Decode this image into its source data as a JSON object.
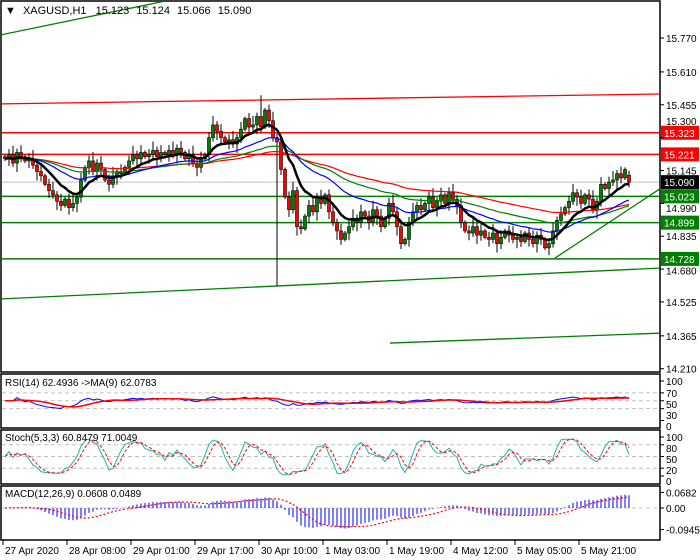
{
  "header": {
    "arrow": "▼",
    "symbol": "XAGUSD,H1",
    "open": "15.123",
    "high": "15.124",
    "low": "15.066",
    "close": "15.090"
  },
  "colors": {
    "bull": "#008000",
    "bear": "#ff0000",
    "ma_fast": "#000000",
    "ma_blue": "#0000ff",
    "ma_green": "#008000",
    "ma_red": "#ff0000",
    "rsi": "#0000ff",
    "rsi_ma": "#ff0000",
    "stoch_k": "#20b2aa",
    "stoch_d": "#ff0000",
    "macd_hist": "#0000ff",
    "macd_signal": "#ff0000",
    "support": "#008000",
    "resistance": "#ff0000"
  },
  "chart_data": [
    {
      "type": "candlestick",
      "title": "XAGUSD,H1",
      "ylim": [
        14.21,
        15.77
      ],
      "y_ticks": [
        "15.770",
        "15.610",
        "15.455",
        "15.300",
        "15.145",
        "14.990",
        "14.835",
        "14.680",
        "14.525",
        "14.365",
        "14.210"
      ],
      "x_ticks": [
        {
          "bar": 0,
          "label": "27 Apr 2020"
        },
        {
          "bar": 16,
          "label": "28 Apr 08:00"
        },
        {
          "bar": 32,
          "label": "29 Apr 01:00"
        },
        {
          "bar": 48,
          "label": "29 Apr 17:00"
        },
        {
          "bar": 64,
          "label": "30 Apr 10:00"
        },
        {
          "bar": 80,
          "label": "1 May 03:00"
        },
        {
          "bar": 96,
          "label": "1 May 19:00"
        },
        {
          "bar": 112,
          "label": "4 May 12:00"
        },
        {
          "bar": 128,
          "label": "5 May 05:00"
        },
        {
          "bar": 144,
          "label": "5 May 21:00"
        }
      ],
      "closes": [
        15.2,
        15.22,
        15.18,
        15.23,
        15.21,
        15.19,
        15.2,
        15.17,
        15.14,
        15.12,
        15.08,
        15.05,
        15.03,
        15.0,
        14.98,
        15.01,
        14.97,
        14.99,
        15.02,
        15.1,
        15.16,
        15.19,
        15.14,
        15.18,
        15.15,
        15.1,
        15.08,
        15.12,
        15.14,
        15.13,
        15.16,
        15.19,
        15.22,
        15.2,
        15.23,
        15.21,
        15.22,
        15.24,
        15.21,
        15.23,
        15.22,
        15.24,
        15.22,
        15.25,
        15.23,
        15.2,
        15.22,
        15.18,
        15.16,
        15.2,
        15.22,
        15.3,
        15.36,
        15.33,
        15.3,
        15.28,
        15.29,
        15.27,
        15.3,
        15.34,
        15.39,
        15.35,
        15.36,
        15.4,
        15.35,
        15.43,
        15.38,
        15.3,
        15.28,
        15.15,
        15.02,
        14.96,
        15.05,
        14.88,
        14.87,
        14.93,
        14.98,
        14.95,
        15.02,
        14.99,
        15.03,
        14.95,
        14.9,
        14.86,
        14.82,
        14.85,
        14.88,
        14.92,
        14.9,
        14.95,
        14.93,
        14.9,
        14.96,
        14.93,
        14.88,
        14.92,
        14.99,
        14.95,
        14.88,
        14.8,
        14.82,
        14.9,
        14.95,
        14.98,
        14.96,
        14.99,
        15.02,
        14.97,
        15.0,
        15.03,
        14.99,
        15.04,
        15.01,
        14.98,
        14.9,
        14.86,
        14.85,
        14.88,
        14.84,
        14.86,
        14.83,
        14.82,
        14.85,
        14.8,
        14.83,
        14.86,
        14.84,
        14.82,
        14.83,
        14.81,
        14.85,
        14.82,
        14.8,
        14.84,
        14.82,
        14.78,
        14.8,
        14.86,
        14.91,
        14.94,
        14.97,
        15.0,
        15.04,
        15.02,
        14.99,
        15.03,
        15.01,
        14.96,
        15.0,
        15.08,
        15.06,
        15.09,
        15.1,
        15.13,
        15.11,
        15.15,
        15.09
      ],
      "last_candle": {
        "open": 15.123,
        "high": 15.124,
        "low": 15.066,
        "close": 15.09
      },
      "wick_extremes": [
        {
          "bar": 64,
          "high": 15.5
        },
        {
          "bar": 68,
          "low": 14.6
        }
      ],
      "moving_averages": [
        {
          "color": "black"
        },
        {
          "color": "blue"
        },
        {
          "color": "green"
        },
        {
          "color": "red"
        }
      ],
      "levels": [
        {
          "price": 15.323,
          "label": "15.323",
          "kind": "resistance"
        },
        {
          "price": 15.221,
          "label": "15.221",
          "kind": "resistance"
        },
        {
          "price": 15.023,
          "label": "15.023",
          "kind": "support"
        },
        {
          "price": 14.899,
          "label": "14.899",
          "kind": "support"
        },
        {
          "price": 14.728,
          "label": "14.728",
          "kind": "support"
        }
      ],
      "current_price": {
        "price": 15.09,
        "label": "15.090"
      },
      "trendlines": [
        {
          "kind": "resistance",
          "from": {
            "bar": -1.25,
            "price": 15.459
          },
          "to": {
            "bar": 164,
            "price": 15.506
          }
        },
        {
          "kind": "support",
          "from": {
            "bar": -1.25,
            "price": 15.784
          },
          "to": {
            "bar": 41.25,
            "price": 15.949
          }
        },
        {
          "kind": "support",
          "from": {
            "bar": -1.25,
            "price": 14.539
          },
          "to": {
            "bar": 164,
            "price": 14.685
          }
        },
        {
          "kind": "support",
          "from": {
            "bar": 96.25,
            "price": 14.331
          },
          "to": {
            "bar": 164,
            "price": 14.378
          }
        },
        {
          "kind": "support",
          "from": {
            "bar": 137.5,
            "price": 14.732
          },
          "to": {
            "bar": 164,
            "price": 15.062
          }
        }
      ]
    },
    {
      "type": "line",
      "title": "RSI(14) 62.4936  ->MA(9) 62.0783",
      "ylim": [
        0,
        100
      ],
      "y_ticks": [
        "100",
        "70",
        "50",
        "30",
        "0"
      ],
      "levels": [
        70,
        50,
        30
      ]
    },
    {
      "type": "line",
      "title": "Stoch(5,3,3) 60.8479 71.0049",
      "ylim": [
        0,
        100
      ],
      "y_ticks": [
        "100",
        "80",
        "50",
        "20",
        "0"
      ],
      "levels": [
        80,
        50,
        20
      ]
    },
    {
      "type": "bar",
      "title": "MACD(12,26,9) 0.0608 0.0489",
      "ylim": [
        -0.0945,
        0.0682
      ],
      "y_ticks": [
        "0.0682",
        "0.00",
        "-0.0945"
      ],
      "levels": [
        0
      ]
    }
  ]
}
